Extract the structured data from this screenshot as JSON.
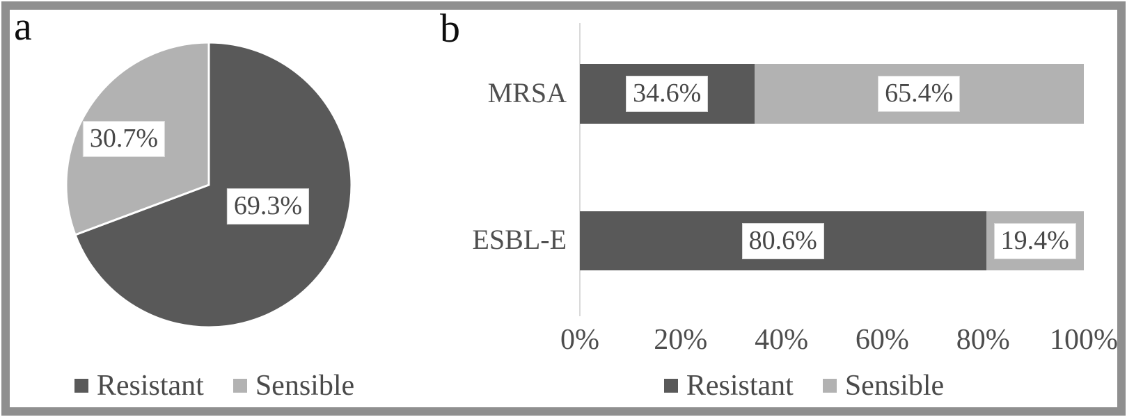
{
  "panels": {
    "a": {
      "label": "a"
    },
    "b": {
      "label": "b"
    }
  },
  "colors": {
    "resistant": "#595959",
    "sensible": "#b2b2b2",
    "frame": "#8f8f8f",
    "axis_line": "#d9d9d9",
    "label_box_bg": "#ffffff"
  },
  "chart_data": [
    {
      "type": "pie",
      "panel": "a",
      "start_angle_deg": 0,
      "direction": "clockwise",
      "slices": [
        {
          "label": "Resistant",
          "value_pct": 69.3,
          "display": "69.3%",
          "color": "#595959"
        },
        {
          "label": "Sensible",
          "value_pct": 30.7,
          "display": "30.7%",
          "color": "#b2b2b2"
        }
      ],
      "legend_position": "bottom"
    },
    {
      "type": "bar",
      "panel": "b",
      "orientation": "horizontal-stacked",
      "categories": [
        "MRSA",
        "ESBL-E"
      ],
      "series": [
        {
          "name": "Resistant",
          "color": "#595959",
          "values": [
            34.6,
            80.6
          ],
          "displays": [
            "34.6%",
            "80.6%"
          ]
        },
        {
          "name": "Sensible",
          "color": "#b2b2b2",
          "values": [
            65.4,
            19.4
          ],
          "displays": [
            "65.4%",
            "19.4%"
          ]
        }
      ],
      "x_axis": {
        "min": 0,
        "max": 100,
        "ticks": [
          "0%",
          "20%",
          "40%",
          "60%",
          "80%",
          "100%"
        ]
      },
      "legend_position": "bottom",
      "grid": false
    }
  ]
}
